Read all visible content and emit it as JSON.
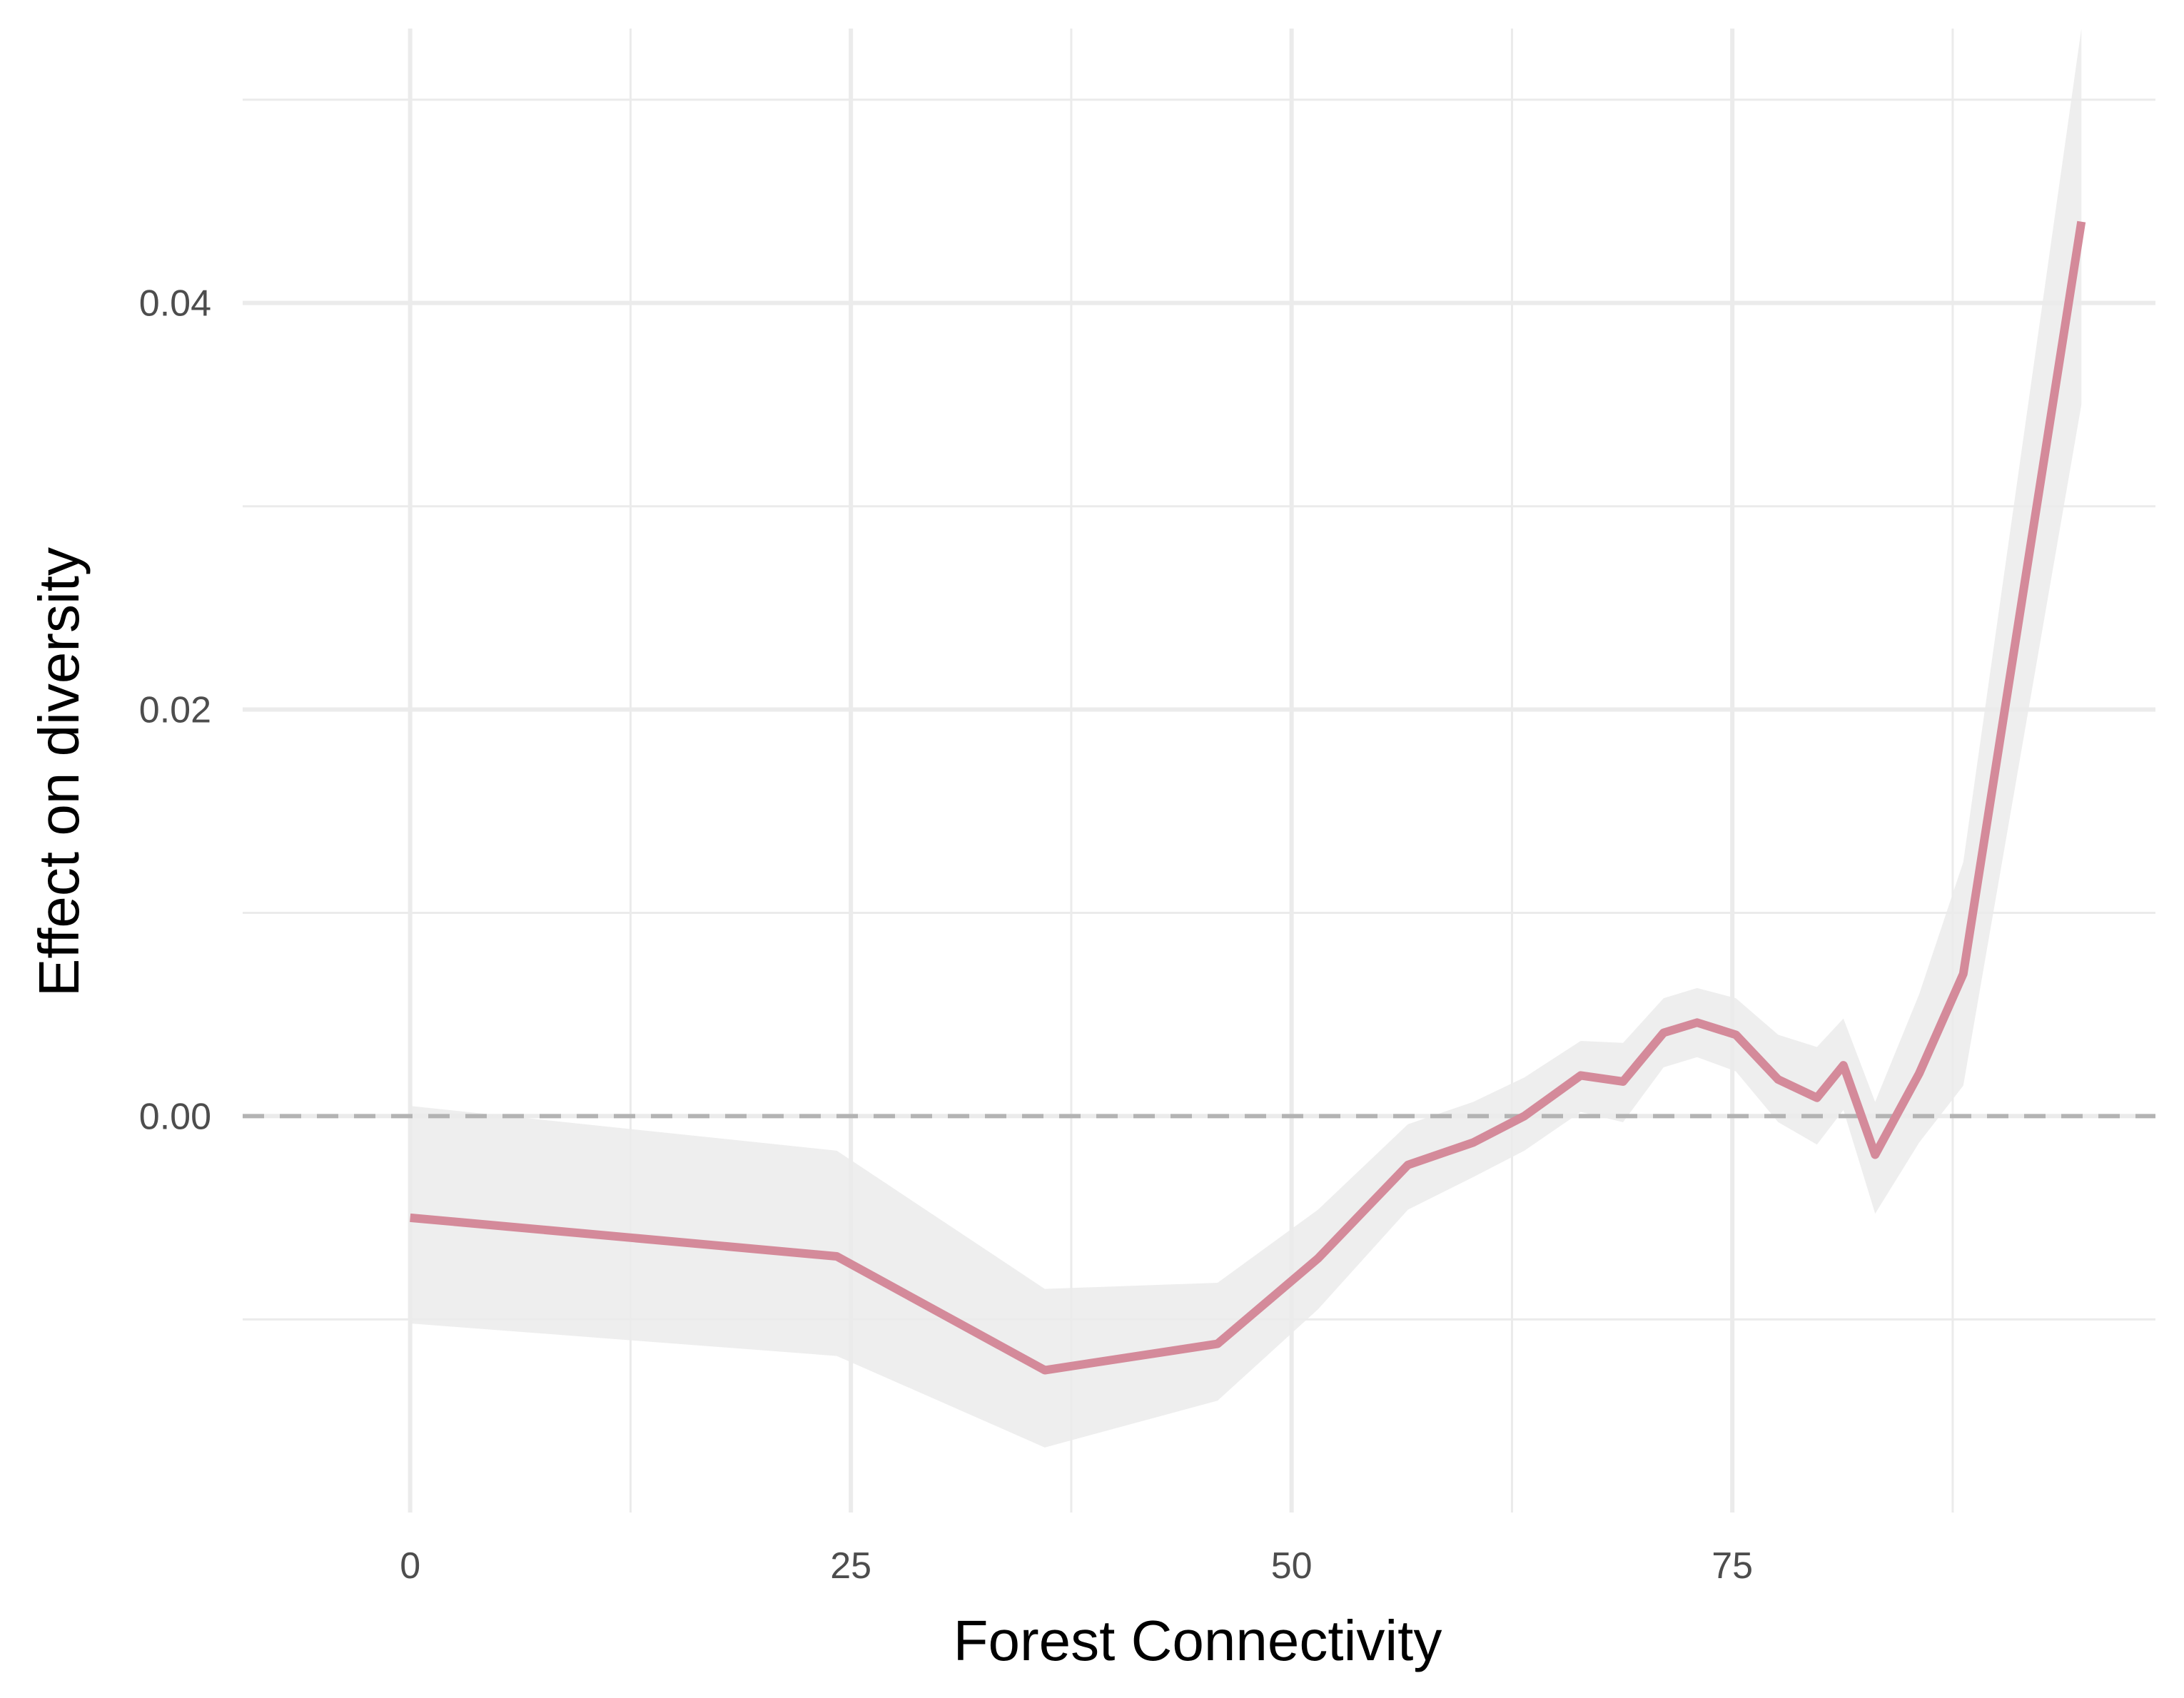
{
  "chart_data": {
    "type": "line",
    "title": "",
    "xlabel": "Forest Connectivity",
    "ylabel": "Effect on diversity",
    "xlim": [
      -9.5,
      99
    ],
    "ylim": [
      -0.0195,
      0.0535
    ],
    "x_ticks": [
      0,
      25,
      50,
      75
    ],
    "x_tick_labels": [
      "0",
      "25",
      "50",
      "75"
    ],
    "x_minor_ticks": [
      12.5,
      37.5,
      62.5,
      87.5
    ],
    "y_ticks": [
      0.0,
      0.02,
      0.04
    ],
    "y_tick_labels": [
      "0.00",
      "0.02",
      "0.04"
    ],
    "y_minor_ticks": [
      -0.01,
      0.01,
      0.03,
      0.05
    ],
    "grid": true,
    "reference_line": {
      "y": 0,
      "style": "dashed",
      "color": "#b3b3b3"
    },
    "line_color": "#d48a9a",
    "band_color": "#ebebeb",
    "series": [
      {
        "x": [
          0,
          24.2,
          36,
          45.8,
          51.5,
          56.6,
          60.3,
          63.2,
          66.4,
          68.8,
          71.1,
          73,
          75.2,
          77.6,
          79.8,
          81.3,
          83.1,
          85.6,
          88.1,
          94.8
        ],
        "y": [
          -0.005,
          -0.0069,
          -0.0125,
          -0.0112,
          -0.007,
          -0.0024,
          -0.0013,
          0.0,
          0.002,
          0.0017,
          0.0041,
          0.0046,
          0.004,
          0.0018,
          0.0009,
          0.0025,
          -0.0019,
          0.0021,
          0.007,
          0.044
        ],
        "lower": [
          -0.0102,
          -0.0118,
          -0.0163,
          -0.014,
          -0.0095,
          -0.0046,
          -0.003,
          -0.0017,
          0.0002,
          -0.0003,
          0.0024,
          0.0029,
          0.0022,
          -0.0003,
          -0.0014,
          0.0003,
          -0.0048,
          -0.0013,
          0.0015,
          0.035
        ],
        "upper": [
          0.0005,
          -0.0017,
          -0.0085,
          -0.0082,
          -0.0046,
          -0.0004,
          0.0007,
          0.0019,
          0.0037,
          0.0036,
          0.0058,
          0.0063,
          0.0058,
          0.004,
          0.0034,
          0.0048,
          0.0007,
          0.006,
          0.0125,
          0.0535
        ]
      }
    ]
  }
}
